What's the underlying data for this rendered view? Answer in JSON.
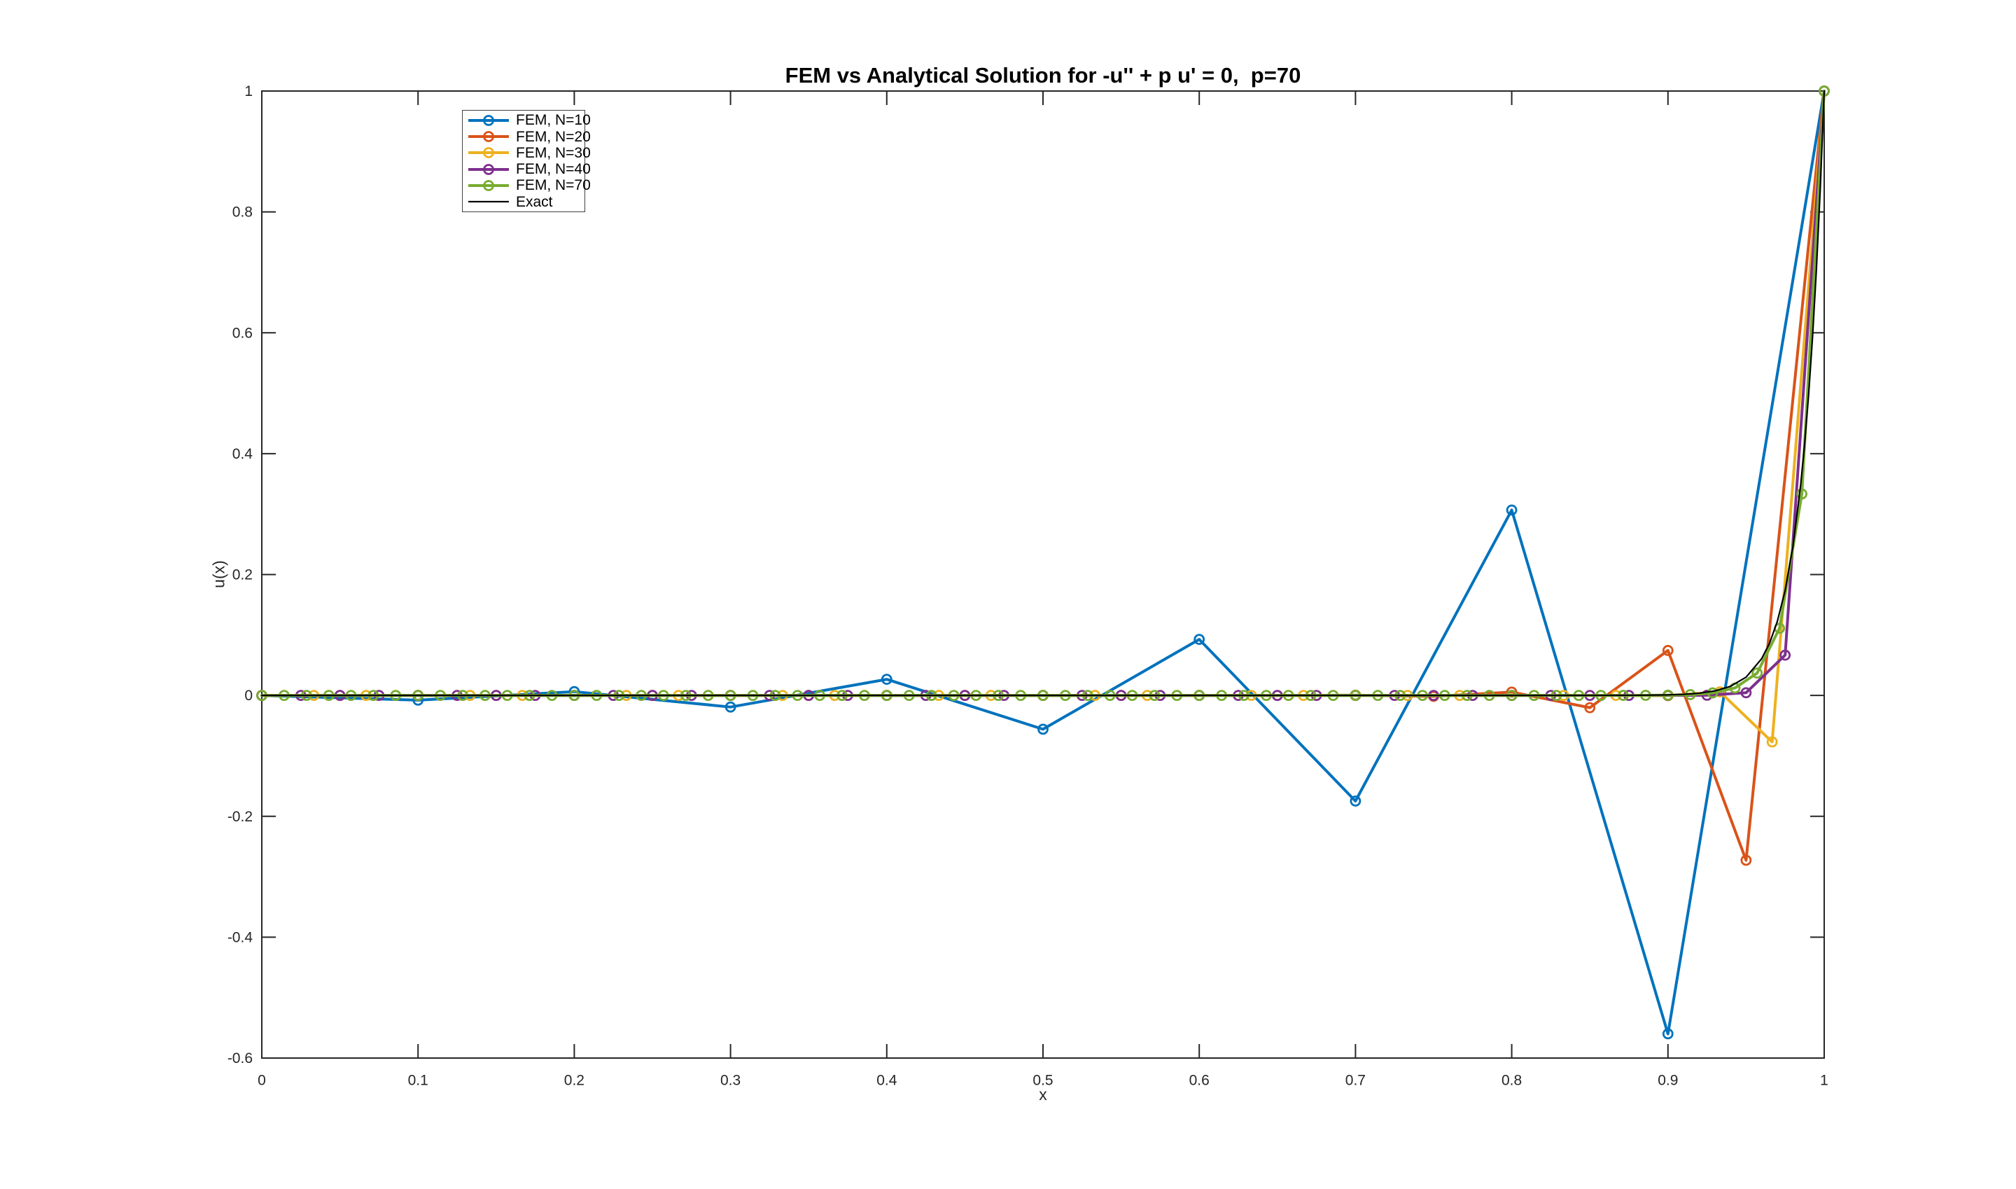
{
  "figure": {
    "background": "#ffffff",
    "axis_color": "#262626"
  },
  "chart_data": {
    "type": "line",
    "title": "FEM vs Analytical Solution for -u'' + p u' = 0,  p=70",
    "xlabel": "x",
    "ylabel": "u(x)",
    "xlim": [
      0,
      1
    ],
    "ylim": [
      -0.6,
      1
    ],
    "xticks": [
      0,
      0.1,
      0.2,
      0.3,
      0.4,
      0.5,
      0.6,
      0.7,
      0.8,
      0.9,
      1
    ],
    "xtick_labels": [
      "0",
      "0.1",
      "0.2",
      "0.3",
      "0.4",
      "0.5",
      "0.6",
      "0.7",
      "0.8",
      "0.9",
      "1"
    ],
    "yticks": [
      -0.6,
      -0.4,
      -0.2,
      0,
      0.2,
      0.4,
      0.6,
      0.8,
      1
    ],
    "ytick_labels": [
      "-0.6",
      "-0.4",
      "-0.2",
      "0",
      "0.2",
      "0.4",
      "0.6",
      "0.8",
      "1"
    ],
    "grid": false,
    "legend_position": "top-left-inside",
    "series": [
      {
        "name": "FEM, N=10",
        "color": "#0072BD",
        "marker": "circle",
        "line_width": 4,
        "x": [
          0,
          0.1,
          0.2,
          0.3,
          0.4,
          0.5,
          0.6,
          0.7,
          0.8,
          0.9,
          1
        ],
        "y": [
          0,
          -0.00786,
          0.00629,
          -0.01919,
          0.02668,
          -0.05588,
          0.09272,
          -0.17476,
          0.3067,
          -0.55992,
          1
        ]
      },
      {
        "name": "FEM, N=20",
        "color": "#D95319",
        "marker": "circle",
        "line_width": 4,
        "x": [
          0,
          0.05,
          0.1,
          0.15,
          0.2,
          0.25,
          0.3,
          0.35,
          0.4,
          0.45,
          0.5,
          0.55,
          0.6,
          0.65,
          0.7,
          0.75,
          0.8,
          0.85,
          0.9,
          0.95,
          1
        ],
        "y": [
          0,
          0,
          0,
          0,
          0,
          0,
          0,
          0,
          0,
          0,
          0,
          -8.3e-06,
          3.06e-05,
          -0.000112,
          0.000412,
          -0.001509,
          0.005532,
          -0.020284,
          0.07438,
          -0.272727,
          1
        ]
      },
      {
        "name": "FEM, N=30",
        "color": "#EDB120",
        "marker": "circle",
        "line_width": 4,
        "x": [
          0,
          0.0333,
          0.0667,
          0.1,
          0.1333,
          0.1667,
          0.2,
          0.2333,
          0.2667,
          0.3,
          0.3333,
          0.3667,
          0.4,
          0.4333,
          0.4667,
          0.5,
          0.5333,
          0.5667,
          0.6,
          0.6333,
          0.6667,
          0.7,
          0.7333,
          0.7667,
          0.8,
          0.8333,
          0.8667,
          0.9,
          0.9333,
          0.9667,
          1
        ],
        "y": [
          0,
          0,
          0,
          0,
          0,
          0,
          0,
          0,
          0,
          0,
          0,
          0,
          0,
          0,
          0,
          0,
          0,
          0,
          0,
          0,
          0,
          0,
          0,
          0,
          0,
          0,
          3.5e-05,
          -0.000455,
          0.005917,
          -0.076923,
          1
        ]
      },
      {
        "name": "FEM, N=40",
        "color": "#7E2F8E",
        "marker": "circle",
        "line_width": 4,
        "x": [
          0,
          0.025,
          0.05,
          0.075,
          0.1,
          0.125,
          0.15,
          0.175,
          0.2,
          0.225,
          0.25,
          0.275,
          0.3,
          0.325,
          0.35,
          0.375,
          0.4,
          0.425,
          0.45,
          0.475,
          0.5,
          0.525,
          0.55,
          0.575,
          0.6,
          0.625,
          0.65,
          0.675,
          0.7,
          0.725,
          0.75,
          0.775,
          0.8,
          0.825,
          0.85,
          0.875,
          0.9,
          0.925,
          0.95,
          0.975,
          1
        ],
        "y": [
          0,
          0,
          0,
          0,
          0,
          0,
          0,
          0,
          0,
          0,
          0,
          0,
          0,
          0,
          0,
          0,
          0,
          0,
          0,
          0,
          0,
          0,
          0,
          0,
          0,
          0,
          0,
          0,
          0,
          0,
          0,
          0,
          0,
          0,
          0,
          0,
          1.98e-05,
          0.000296,
          0.004444,
          0.066667,
          1
        ]
      },
      {
        "name": "FEM, N=70",
        "color": "#77AC30",
        "marker": "circle",
        "line_width": 4,
        "x": [
          0,
          0.0143,
          0.0286,
          0.0429,
          0.0571,
          0.0714,
          0.0857,
          0.1,
          0.1143,
          0.1286,
          0.1429,
          0.1571,
          0.1714,
          0.1857,
          0.2,
          0.2143,
          0.2286,
          0.2429,
          0.2571,
          0.2714,
          0.2857,
          0.3,
          0.3143,
          0.3286,
          0.3429,
          0.3571,
          0.3714,
          0.3857,
          0.4,
          0.4143,
          0.4286,
          0.4429,
          0.4571,
          0.4714,
          0.4857,
          0.5,
          0.5143,
          0.5286,
          0.5429,
          0.5571,
          0.5714,
          0.5857,
          0.6,
          0.6143,
          0.6286,
          0.6429,
          0.6571,
          0.6714,
          0.6857,
          0.7,
          0.7143,
          0.7286,
          0.7429,
          0.7571,
          0.7714,
          0.7857,
          0.8,
          0.8143,
          0.8286,
          0.8429,
          0.8571,
          0.8714,
          0.8857,
          0.9,
          0.9143,
          0.9286,
          0.9429,
          0.9571,
          0.9714,
          0.9857,
          1
        ],
        "y": [
          0,
          0,
          0,
          0,
          0,
          0,
          0,
          0,
          0,
          0,
          0,
          0,
          0,
          0,
          0,
          0,
          0,
          0,
          0,
          0,
          0,
          0,
          0,
          0,
          0,
          0,
          0,
          0,
          0,
          0,
          0,
          0,
          0,
          0,
          0,
          0,
          0,
          0,
          0,
          0,
          0,
          0,
          0,
          0,
          0,
          0,
          0,
          0,
          0,
          0,
          0,
          0,
          0,
          0,
          0,
          0,
          0,
          0,
          0,
          5.6e-06,
          1.69e-05,
          5.08e-05,
          0.000152,
          0.000457,
          0.001372,
          0.004115,
          0.012346,
          0.037037,
          0.111111,
          0.333333,
          1
        ]
      },
      {
        "name": "Exact",
        "color": "#000000",
        "marker": "none",
        "line_width": 2.2,
        "x": [
          0,
          0.1,
          0.2,
          0.3,
          0.4,
          0.5,
          0.6,
          0.7,
          0.75,
          0.8,
          0.84,
          0.86,
          0.88,
          0.9,
          0.91,
          0.92,
          0.93,
          0.94,
          0.95,
          0.96,
          0.965,
          0.97,
          0.975,
          0.98,
          0.985,
          0.9875,
          0.99,
          0.9925,
          0.995,
          0.9975,
          1
        ],
        "y": [
          0,
          0,
          0,
          0,
          0,
          0,
          0,
          0,
          0,
          1e-06,
          1.37e-05,
          5.53e-05,
          0.000225,
          0.000912,
          0.00184,
          0.0037,
          0.00745,
          0.015,
          0.0302,
          0.0608,
          0.0863,
          0.1225,
          0.1738,
          0.2466,
          0.3499,
          0.4169,
          0.4966,
          0.5916,
          0.7047,
          0.8395,
          1
        ]
      }
    ]
  }
}
